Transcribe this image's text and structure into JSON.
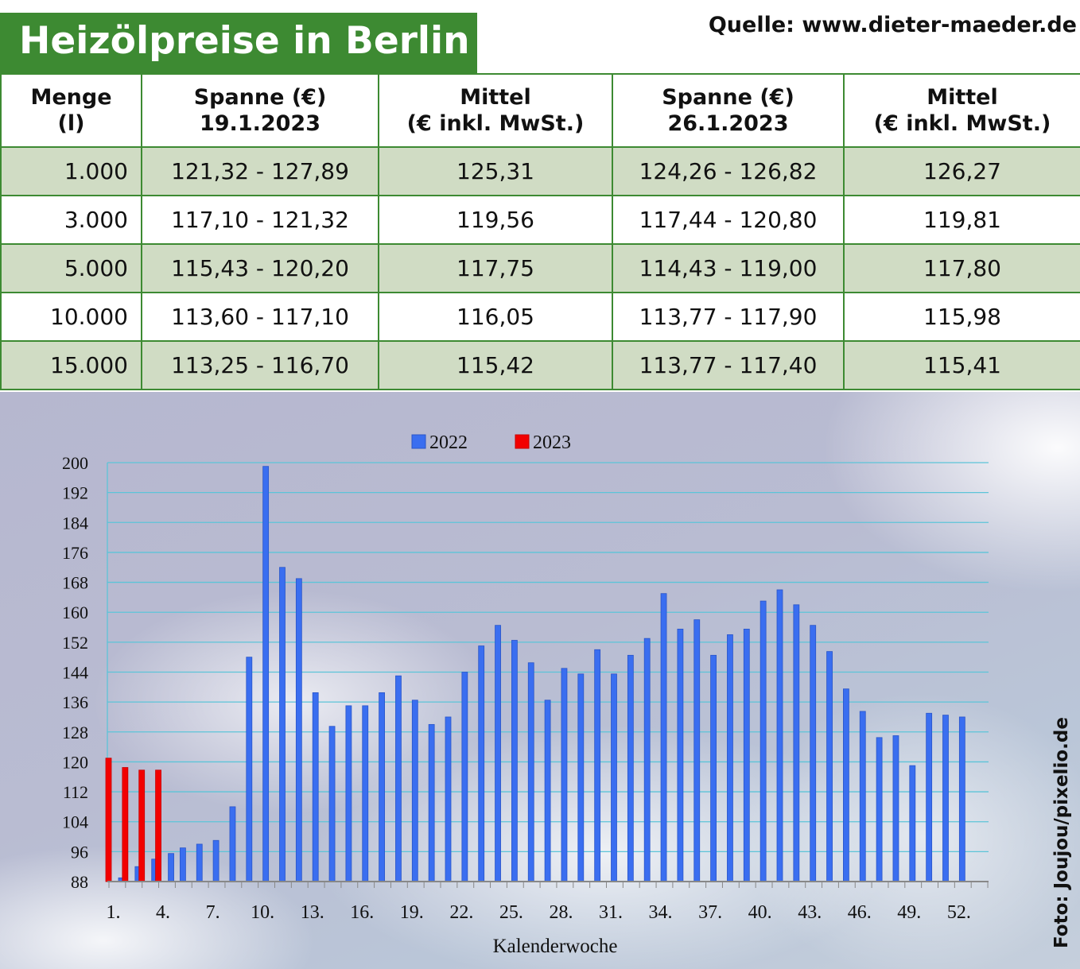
{
  "header": {
    "title": "Heizölpreise in Berlin",
    "source": "Quelle: www.dieter-maeder.de",
    "photo_credit": "Foto: Joujou/pixelio.de"
  },
  "table": {
    "headers": [
      [
        "Menge",
        "(l)"
      ],
      [
        "Spanne (€)",
        "19.1.2023"
      ],
      [
        "Mittel",
        "(€ inkl. MwSt.)"
      ],
      [
        "Spanne (€)",
        "26.1.2023"
      ],
      [
        "Mittel",
        "(€ inkl. MwSt.)"
      ]
    ],
    "rows": [
      [
        "1.000",
        "121,32 - 127,89",
        "125,31",
        "124,26 - 126,82",
        "126,27"
      ],
      [
        "3.000",
        "117,10 - 121,32",
        "119,56",
        "117,44 - 120,80",
        "119,81"
      ],
      [
        "5.000",
        "115,43 - 120,20",
        "117,75",
        "114,43 - 119,00",
        "117,80"
      ],
      [
        "10.000",
        "113,60 - 117,10",
        "116,05",
        "113,77 - 117,90",
        "115,98"
      ],
      [
        "15.000",
        "113,25 - 116,70",
        "115,42",
        "113,77 - 117,40",
        "115,41"
      ]
    ]
  },
  "chart_data": {
    "type": "bar",
    "xlabel": "Kalenderwoche",
    "ylabel": "",
    "ylim": [
      88,
      200
    ],
    "yticks": [
      88,
      96,
      104,
      112,
      120,
      128,
      136,
      144,
      152,
      160,
      168,
      176,
      184,
      192,
      200
    ],
    "xtick_labels": [
      "1.",
      "4.",
      "7.",
      "10.",
      "13.",
      "16.",
      "19.",
      "22.",
      "25.",
      "28.",
      "31.",
      "34.",
      "37.",
      "40.",
      "43.",
      "46.",
      "49.",
      "52."
    ],
    "xtick_weeks": [
      1,
      4,
      7,
      10,
      13,
      16,
      19,
      22,
      25,
      28,
      31,
      34,
      37,
      40,
      43,
      46,
      49,
      52
    ],
    "weeks": [
      1,
      2,
      3,
      4,
      5,
      6,
      7,
      8,
      9,
      10,
      11,
      12,
      13,
      14,
      15,
      16,
      17,
      18,
      19,
      20,
      21,
      22,
      23,
      24,
      25,
      26,
      27,
      28,
      29,
      30,
      31,
      32,
      33,
      34,
      35,
      36,
      37,
      38,
      39,
      40,
      41,
      42,
      43,
      44,
      45,
      46,
      47,
      48,
      49,
      50,
      51,
      52
    ],
    "grid": true,
    "legend_position": "top-center",
    "series": [
      {
        "name": "2022",
        "color": "#3a6ef0",
        "values": [
          89,
          92,
          94,
          95.5,
          97,
          98,
          99,
          108,
          148,
          199,
          172,
          169,
          138.5,
          129.5,
          135,
          135,
          138.5,
          143,
          136.5,
          130,
          132,
          144,
          151,
          156.5,
          152.5,
          146.5,
          136.5,
          145,
          143.5,
          150,
          143.5,
          148.5,
          153,
          165,
          155.5,
          158,
          148.5,
          154,
          155.5,
          163,
          166,
          162,
          156.5,
          149.5,
          139.5,
          133.5,
          126.5,
          127,
          119,
          133,
          132.5,
          132
        ]
      },
      {
        "name": "2023",
        "color": "#f20000",
        "values": [
          121,
          118.5,
          117.8,
          117.8
        ]
      }
    ]
  }
}
